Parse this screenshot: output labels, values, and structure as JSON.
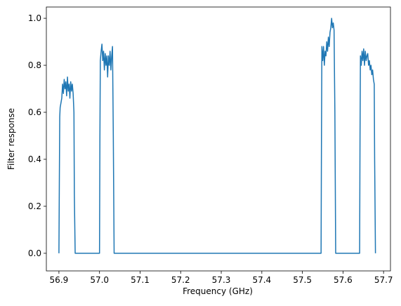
{
  "chart_data": {
    "type": "line",
    "xlabel": "Frequency (GHz)",
    "ylabel": "Filter response",
    "x": [
      56.9,
      56.901,
      56.902,
      56.903,
      56.905,
      56.907,
      56.909,
      56.911,
      56.913,
      56.915,
      56.917,
      56.919,
      56.921,
      56.923,
      56.925,
      56.927,
      56.929,
      56.931,
      56.933,
      56.935,
      56.937,
      56.938,
      56.94,
      57.0,
      57.001,
      57.002,
      57.004,
      57.006,
      57.008,
      57.01,
      57.012,
      57.014,
      57.016,
      57.018,
      57.02,
      57.022,
      57.024,
      57.026,
      57.028,
      57.03,
      57.032,
      57.034,
      57.036,
      57.546,
      57.547,
      57.548,
      57.55,
      57.552,
      57.554,
      57.556,
      57.558,
      57.56,
      57.562,
      57.564,
      57.566,
      57.568,
      57.57,
      57.572,
      57.574,
      57.576,
      57.578,
      57.58,
      57.582,
      57.641,
      57.642,
      57.643,
      57.645,
      57.647,
      57.649,
      57.651,
      57.653,
      57.655,
      57.657,
      57.659,
      57.661,
      57.663,
      57.665,
      57.667,
      57.669,
      57.671,
      57.673,
      57.675,
      57.677,
      57.678,
      57.68
    ],
    "series": [
      {
        "color": "#1f77b4",
        "values": [
          0.0,
          0.3,
          0.58,
          0.62,
          0.64,
          0.66,
          0.72,
          0.68,
          0.74,
          0.7,
          0.73,
          0.67,
          0.75,
          0.69,
          0.72,
          0.66,
          0.73,
          0.69,
          0.72,
          0.68,
          0.6,
          0.25,
          0.0,
          0.0,
          0.5,
          0.82,
          0.86,
          0.89,
          0.82,
          0.86,
          0.78,
          0.85,
          0.8,
          0.84,
          0.75,
          0.84,
          0.8,
          0.86,
          0.78,
          0.84,
          0.88,
          0.5,
          0.0,
          0.0,
          0.5,
          0.88,
          0.82,
          0.88,
          0.8,
          0.86,
          0.84,
          0.9,
          0.86,
          0.92,
          0.88,
          0.94,
          0.96,
          1.0,
          0.96,
          0.98,
          0.95,
          0.6,
          0.0,
          0.0,
          0.5,
          0.84,
          0.8,
          0.86,
          0.82,
          0.87,
          0.8,
          0.86,
          0.82,
          0.84,
          0.85,
          0.8,
          0.82,
          0.78,
          0.8,
          0.76,
          0.78,
          0.74,
          0.72,
          0.4,
          0.0
        ]
      }
    ],
    "xlim": [
      56.869,
      57.717
    ],
    "ylim": [
      -0.075,
      1.048
    ],
    "xticks": [
      56.9,
      {
        "value": 57,
        "label": "57.0"
      },
      57.1,
      57.2,
      57.3,
      57.4,
      57.5,
      57.6,
      57.7
    ],
    "yticks": [
      {
        "value": 0,
        "label": "0.0"
      },
      0.2,
      0.4,
      0.6,
      0.8,
      {
        "value": 1,
        "label": "1.0"
      }
    ],
    "grid": false
  }
}
